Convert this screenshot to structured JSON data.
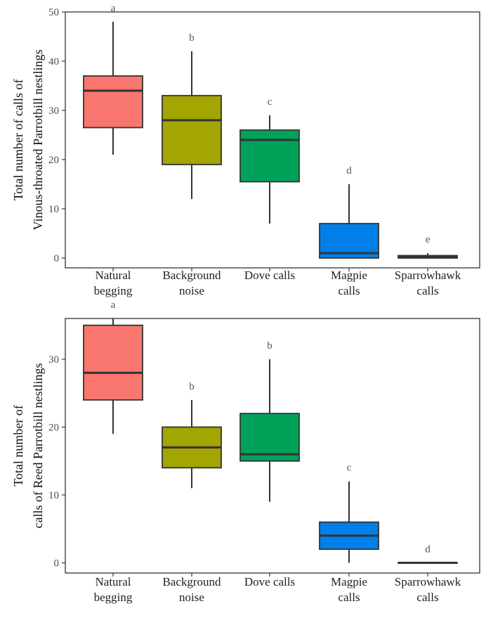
{
  "chart_data": [
    {
      "type": "boxplot",
      "ylabel": [
        "Total number of calls of",
        "Vinous-throated Parrotbill nestlings"
      ],
      "ylim": [
        -2,
        50
      ],
      "yticks": [
        0,
        10,
        20,
        30,
        40,
        50
      ],
      "grid": false,
      "categories": [
        [
          "Natural",
          "begging"
        ],
        [
          "Background",
          "noise"
        ],
        [
          "Dove calls"
        ],
        [
          "Magpie",
          "calls"
        ],
        [
          "Sparrowhawk",
          "calls"
        ]
      ],
      "boxes": [
        {
          "min": 21,
          "q1": 26.5,
          "median": 34,
          "q3": 37,
          "max": 48,
          "color": "#F8766D",
          "letter": "a"
        },
        {
          "min": 12,
          "q1": 19,
          "median": 28,
          "q3": 33,
          "max": 42,
          "color": "#A3A500",
          "letter": "b"
        },
        {
          "min": 7,
          "q1": 15.5,
          "median": 24,
          "q3": 26,
          "max": 29,
          "color": "#00A25A",
          "letter": "c"
        },
        {
          "min": 0,
          "q1": 0,
          "median": 1,
          "q3": 7,
          "max": 15,
          "color": "#0080E8",
          "letter": "d"
        },
        {
          "min": 0,
          "q1": 0,
          "median": 0.2,
          "q3": 0.5,
          "max": 1,
          "color": "#E76BF3",
          "letter": "e"
        }
      ]
    },
    {
      "type": "boxplot",
      "ylabel": [
        "Total number of",
        "calls of Reed Parrotbill nestlings"
      ],
      "ylim": [
        -1.5,
        36
      ],
      "yticks": [
        0,
        10,
        20,
        30
      ],
      "grid": false,
      "categories": [
        [
          "Natural",
          "begging"
        ],
        [
          "Background",
          "noise"
        ],
        [
          "Dove calls"
        ],
        [
          "Magpie",
          "calls"
        ],
        [
          "Sparrowhawk",
          "calls"
        ]
      ],
      "boxes": [
        {
          "min": 19,
          "q1": 24,
          "median": 28,
          "q3": 35,
          "max": 36,
          "color": "#F8766D",
          "letter": "a"
        },
        {
          "min": 11,
          "q1": 14,
          "median": 17,
          "q3": 20,
          "max": 24,
          "color": "#A3A500",
          "letter": "b"
        },
        {
          "min": 9,
          "q1": 15,
          "median": 16,
          "q3": 22,
          "max": 30,
          "color": "#00A25A",
          "letter": "b"
        },
        {
          "min": 0,
          "q1": 2,
          "median": 4,
          "q3": 6,
          "max": 12,
          "color": "#0080E8",
          "letter": "c"
        },
        {
          "min": 0,
          "q1": 0,
          "median": 0,
          "q3": 0,
          "max": 0,
          "color": "#E76BF3",
          "letter": "d"
        }
      ]
    }
  ]
}
